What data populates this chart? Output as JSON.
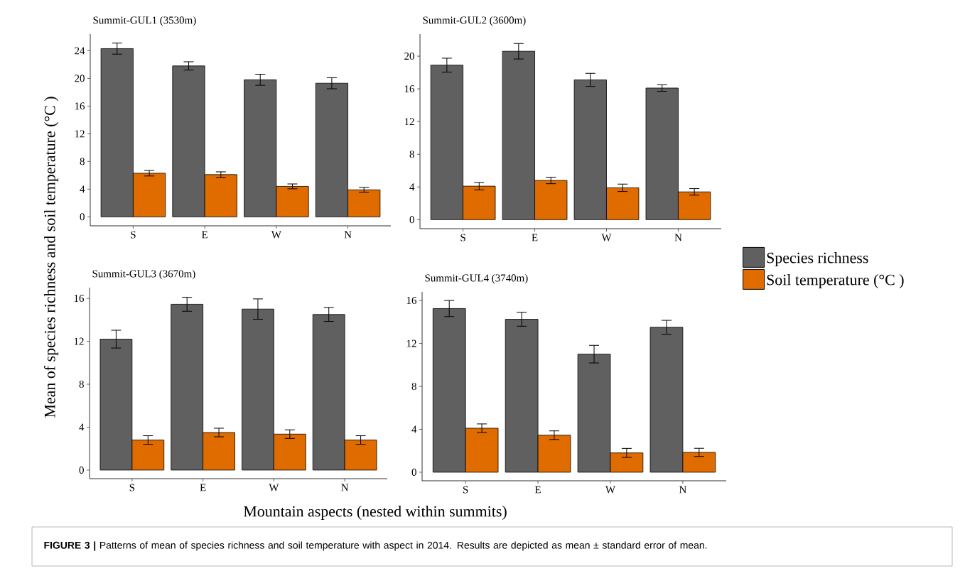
{
  "chart_data": [
    {
      "type": "bar",
      "title": "Summit-GUL1 (3530m)",
      "ylabel": "Mean of species richness and soil temperature  (°C )",
      "xlabel": "Mountain aspects (nested within summits)",
      "categories": [
        "S",
        "E",
        "W",
        "N"
      ],
      "legend": "right",
      "ylim": [
        -1.3,
        26.4
      ],
      "yticks": [
        0,
        4,
        8,
        12,
        16,
        20,
        24
      ],
      "series": [
        {
          "name": "Species richness",
          "color": "#606060",
          "values": [
            24.3,
            21.8,
            19.8,
            19.3
          ],
          "errors": [
            0.8,
            0.6,
            0.8,
            0.8
          ]
        },
        {
          "name": "Soil temperature (°C )",
          "color": "#e06c00",
          "values": [
            6.3,
            6.1,
            4.4,
            3.9
          ],
          "errors": [
            0.4,
            0.4,
            0.35,
            0.35
          ]
        }
      ],
      "annotations": [
        "**FIGURE 3 |** Patterns of mean of species richness and soil temperature with aspect in 2014. Results are depicted as mean ± standard error of mean."
      ]
    },
    {
      "type": "bar",
      "title": "Summit-GUL2 (3600m)",
      "categories": [
        "S",
        "E",
        "W",
        "N"
      ],
      "ylim": [
        -1.1,
        22.7
      ],
      "yticks": [
        0,
        4,
        8,
        12,
        16,
        20
      ],
      "series": [
        {
          "color": "#606060",
          "values": [
            18.9,
            20.6,
            17.1,
            16.1
          ],
          "errors": [
            0.85,
            0.95,
            0.8,
            0.4
          ]
        },
        {
          "color": "#e06c00",
          "values": [
            4.1,
            4.8,
            3.9,
            3.4
          ],
          "errors": [
            0.45,
            0.4,
            0.45,
            0.4
          ]
        }
      ]
    },
    {
      "type": "bar",
      "title": "Summit-GUL3 (3670m)",
      "categories": [
        "S",
        "E",
        "W",
        "N"
      ],
      "ylim": [
        -0.8,
        17.0
      ],
      "yticks": [
        0,
        4,
        8,
        12,
        16
      ],
      "series": [
        {
          "color": "#606060",
          "values": [
            12.2,
            15.45,
            15.0,
            14.5
          ],
          "errors": [
            0.83,
            0.65,
            0.95,
            0.65
          ]
        },
        {
          "color": "#e06c00",
          "values": [
            2.8,
            3.5,
            3.35,
            2.8
          ],
          "errors": [
            0.4,
            0.4,
            0.4,
            0.4
          ]
        }
      ]
    },
    {
      "type": "bar",
      "title": "Summit-GUL4 (3740m)",
      "categories": [
        "S",
        "E",
        "W",
        "N"
      ],
      "ylim": [
        -0.8,
        16.8
      ],
      "yticks": [
        0,
        4,
        8,
        12,
        16
      ],
      "series": [
        {
          "color": "#606060",
          "values": [
            15.25,
            14.25,
            11.0,
            13.5
          ],
          "errors": [
            0.75,
            0.65,
            0.82,
            0.65
          ]
        },
        {
          "color": "#e06c00",
          "values": [
            4.1,
            3.45,
            1.8,
            1.85
          ],
          "errors": [
            0.4,
            0.4,
            0.42,
            0.38
          ]
        }
      ]
    }
  ]
}
